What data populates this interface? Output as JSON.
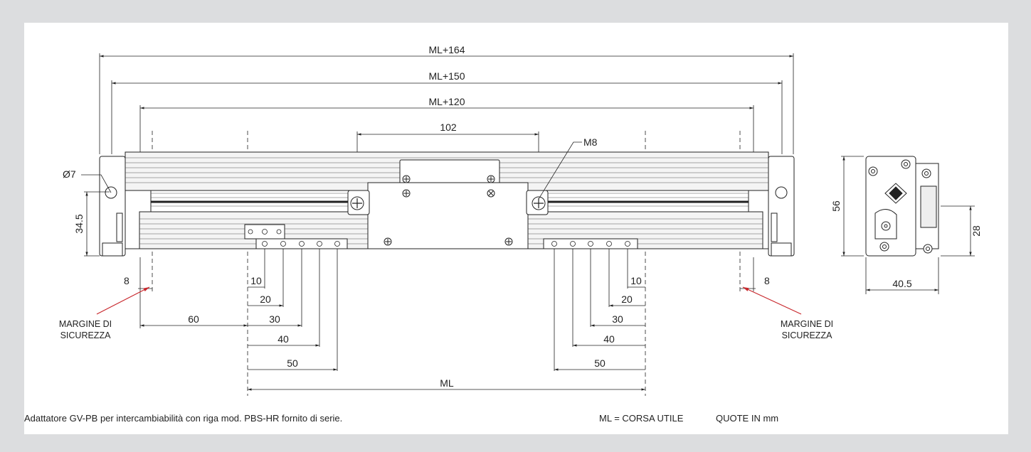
{
  "dimensions": {
    "overall_164": "ML+164",
    "overall_150": "ML+150",
    "overall_120": "ML+120",
    "center_102": "102",
    "thread": "M8",
    "hole_dia": "Ø7",
    "height_345": "34.5",
    "margin_left": "8",
    "margin_right": "8",
    "offset_60": "60",
    "left_10": "10",
    "left_20": "20",
    "left_30": "30",
    "left_40": "40",
    "left_50": "50",
    "right_10": "10",
    "right_20": "20",
    "right_30": "30",
    "right_40": "40",
    "right_50": "50",
    "stroke": "ML",
    "side_height": "56",
    "side_height_28": "28",
    "side_width": "40.5"
  },
  "labels": {
    "margin_line1": "MARGINE DI",
    "margin_line2": "SICUREZZA"
  },
  "footer": {
    "note": "Adattatore GV-PB per intercambiabilità con riga mod. PBS-HR fornito di serie.",
    "legend_ml": "ML = CORSA UTILE",
    "legend_units": "QUOTE IN mm"
  },
  "colors": {
    "background": "#dcdddf",
    "sheet": "#ffffff",
    "line": "#222222",
    "leader_red": "#c8282d"
  }
}
